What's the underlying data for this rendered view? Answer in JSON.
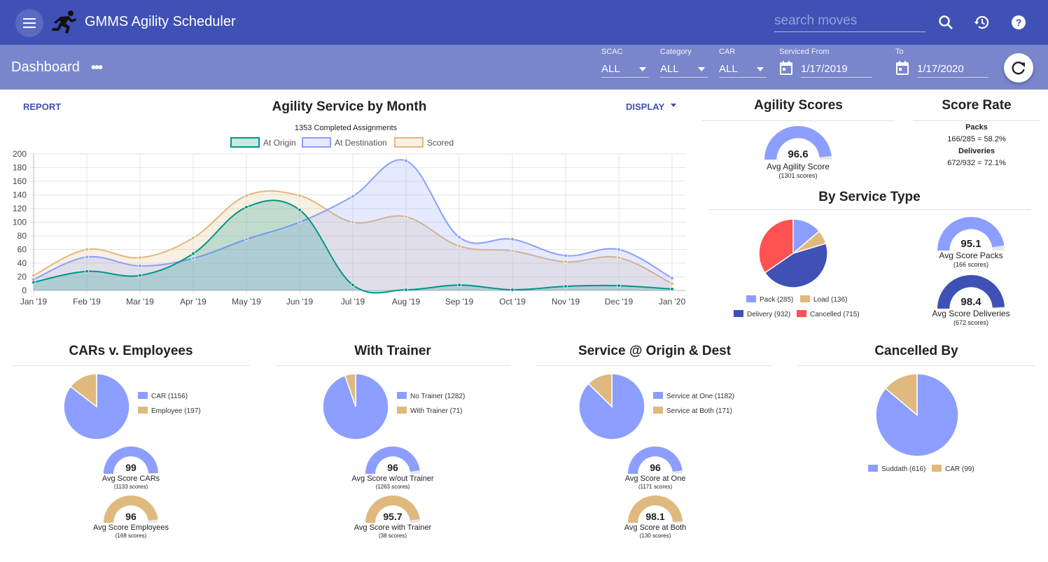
{
  "appbar": {
    "title": "GMMS Agility Scheduler",
    "search_placeholder": "search moves",
    "icons": [
      "menu-icon",
      "runner-logo-icon",
      "search-icon",
      "history-icon",
      "help-icon"
    ],
    "color": "#3f51b5"
  },
  "toolbar": {
    "title": "Dashboard",
    "more": "•••",
    "filters": [
      {
        "label": "SCAC",
        "value": "ALL"
      },
      {
        "label": "Category",
        "value": "ALL"
      },
      {
        "label": "CAR",
        "value": "ALL"
      }
    ],
    "serviced_from_label": "Serviced From",
    "serviced_from": "1/17/2019",
    "to_label": "To",
    "to": "1/17/2020",
    "color": "#7986cb"
  },
  "main_chart": {
    "report_label": "REPORT",
    "display_label": "DISPLAY",
    "title": "Agility Service by Month",
    "subtitle": "1353 Completed Assignments"
  },
  "chart_data": [
    {
      "type": "area",
      "title": "Agility Service by Month",
      "subtitle": "1353 Completed Assignments",
      "x": [
        "Jan '19",
        "Feb '19",
        "Mar '19",
        "Apr '19",
        "May '19",
        "Jun '19",
        "Jul '19",
        "Aug '19",
        "Sep '19",
        "Oct '19",
        "Nov '19",
        "Dec '19",
        "Jan '20"
      ],
      "y_ticks": [
        0,
        20,
        40,
        60,
        80,
        100,
        120,
        140,
        160,
        180,
        200
      ],
      "ylim": [
        0,
        200
      ],
      "grid": true,
      "legend": "top",
      "series": [
        {
          "name": "At Origin",
          "color": "#009688",
          "values": [
            12,
            28,
            22,
            54,
            122,
            118,
            8,
            1,
            8,
            1,
            6,
            7,
            2
          ]
        },
        {
          "name": "At Destination",
          "color": "#8c9eff",
          "values": [
            16,
            49,
            36,
            47,
            75,
            100,
            138,
            190,
            78,
            75,
            51,
            60,
            18
          ]
        },
        {
          "name": "Scored",
          "color": "#e0b97f",
          "values": [
            22,
            60,
            48,
            77,
            139,
            139,
            100,
            108,
            65,
            58,
            42,
            48,
            10
          ]
        }
      ]
    },
    {
      "type": "pie",
      "title": "By Service Type",
      "categories": [
        "Pack (285)",
        "Load (136)",
        "Delivery (932)",
        "Cancelled (715)"
      ],
      "values": [
        285,
        136,
        932,
        715
      ],
      "colors": [
        "#8c9eff",
        "#e0b97f",
        "#3f51b5",
        "#ff5252"
      ]
    },
    {
      "type": "pie",
      "title": "CARs v. Employees",
      "categories": [
        "CAR (1156)",
        "Employee (197)"
      ],
      "values": [
        1156,
        197
      ],
      "colors": [
        "#8c9eff",
        "#e0b97f"
      ]
    },
    {
      "type": "pie",
      "title": "With Trainer",
      "categories": [
        "No Trainer (1282)",
        "With Trainer (71)"
      ],
      "values": [
        1282,
        71
      ],
      "colors": [
        "#8c9eff",
        "#e0b97f"
      ]
    },
    {
      "type": "pie",
      "title": "Service @ Origin & Dest",
      "categories": [
        "Service at One (1182)",
        "Service at Both (171)"
      ],
      "values": [
        1182,
        171
      ],
      "colors": [
        "#8c9eff",
        "#e0b97f"
      ]
    },
    {
      "type": "pie",
      "title": "Cancelled By",
      "categories": [
        "Suddath (616)",
        "CAR (99)"
      ],
      "values": [
        616,
        99
      ],
      "colors": [
        "#8c9eff",
        "#e0b97f"
      ]
    }
  ],
  "agility_scores": {
    "title": "Agility Scores",
    "gauge": {
      "value": "96.6",
      "label": "Avg Agility Score",
      "sub": "(1301 scores)",
      "fraction": 0.966,
      "color": "#8c9eff"
    }
  },
  "score_rate": {
    "title": "Score Rate",
    "packs_label": "Packs",
    "packs": "166/285 = 58.2%",
    "deliveries_label": "Deliveries",
    "deliveries": "672/932 = 72.1%"
  },
  "service_type": {
    "title": "By Service Type",
    "legend": [
      "Pack (285)",
      "Load (136)",
      "Delivery (932)",
      "Cancelled (715)"
    ],
    "gauges": [
      {
        "value": "95.1",
        "label": "Avg Score Packs",
        "sub": "(166 scores)",
        "fraction": 0.951,
        "color": "#8c9eff"
      },
      {
        "value": "98.4",
        "label": "Avg Score Deliveries",
        "sub": "(672 scores)",
        "fraction": 0.984,
        "color": "#3f51b5"
      }
    ]
  },
  "bottom": [
    {
      "title": "CARs v. Employees",
      "legend": [
        "CAR (1156)",
        "Employee (197)"
      ],
      "gauges": [
        {
          "value": "99",
          "label": "Avg Score CARs",
          "sub": "(1133 scores)",
          "fraction": 0.99,
          "color": "#8c9eff"
        },
        {
          "value": "96",
          "label": "Avg Score Employees",
          "sub": "(168 scores)",
          "fraction": 0.96,
          "color": "#e0b97f"
        }
      ]
    },
    {
      "title": "With Trainer",
      "legend": [
        "No Trainer (1282)",
        "With Trainer (71)"
      ],
      "gauges": [
        {
          "value": "96",
          "label": "Avg Score w/out Trainer",
          "sub": "(1263 scores)",
          "fraction": 0.96,
          "color": "#8c9eff"
        },
        {
          "value": "95.7",
          "label": "Avg Score with Trainer",
          "sub": "(38 scores)",
          "fraction": 0.957,
          "color": "#e0b97f"
        }
      ]
    },
    {
      "title": "Service @ Origin & Dest",
      "legend": [
        "Service at One (1182)",
        "Service at Both (171)"
      ],
      "gauges": [
        {
          "value": "96",
          "label": "Avg Score at One",
          "sub": "(1171 scores)",
          "fraction": 0.96,
          "color": "#8c9eff"
        },
        {
          "value": "98.1",
          "label": "Avg Score at Both",
          "sub": "(130 scores)",
          "fraction": 0.981,
          "color": "#e0b97f"
        }
      ]
    },
    {
      "title": "Cancelled By",
      "legend": [
        "Suddath (616)",
        "CAR (99)"
      ]
    }
  ]
}
